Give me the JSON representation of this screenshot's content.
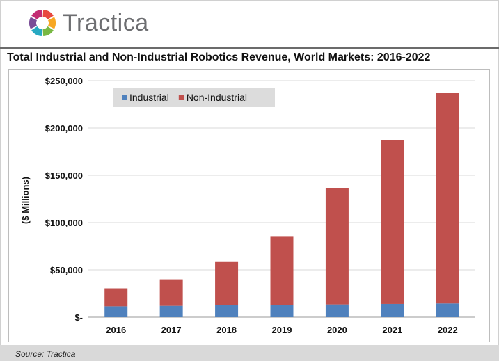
{
  "brand": {
    "name": "Tractica",
    "colors": [
      "#e8493f",
      "#f7a823",
      "#78b843",
      "#27a9c2",
      "#7a4d97",
      "#c22c73"
    ]
  },
  "chart_data": {
    "type": "bar",
    "stacked": true,
    "title": "Total Industrial and Non-Industrial Robotics Revenue, World Markets: 2016-2022",
    "ylabel": "($ Millions)",
    "xlabel": "",
    "categories": [
      "2016",
      "2017",
      "2018",
      "2019",
      "2020",
      "2021",
      "2022"
    ],
    "series": [
      {
        "name": "Industrial",
        "color": "#4f81bd",
        "values": [
          11500,
          12000,
          12500,
          13000,
          13500,
          14000,
          14500
        ]
      },
      {
        "name": "Non-Industrial",
        "color": "#c0504d",
        "values": [
          19000,
          28000,
          46500,
          72000,
          123000,
          173500,
          222500
        ]
      }
    ],
    "ylim": [
      0,
      250000
    ],
    "yticks": [
      0,
      50000,
      100000,
      150000,
      200000,
      250000
    ],
    "ytick_labels": [
      "$-",
      "$50,000",
      "$100,000",
      "$150,000",
      "$200,000",
      "$250,000"
    ],
    "grid": true,
    "legend_position": "top-left"
  },
  "source": "Source: Tractica"
}
